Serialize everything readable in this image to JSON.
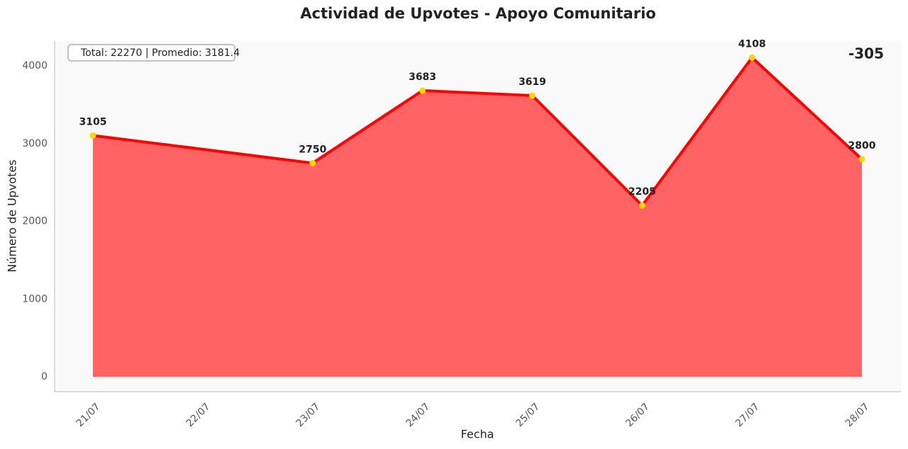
{
  "chart_data": {
    "type": "area",
    "title": "Actividad de Upvotes - Apoyo Comunitario",
    "xlabel": "Fecha",
    "ylabel": "Número de Upvotes",
    "x": [
      "21/07",
      "23/07",
      "24/07",
      "25/07",
      "26/07",
      "27/07",
      "28/07"
    ],
    "values": [
      3105,
      2750,
      3683,
      3619,
      2205,
      4108,
      2800
    ],
    "xticks": [
      "21/07",
      "22/07",
      "23/07",
      "24/07",
      "25/07",
      "26/07",
      "27/07",
      "28/07"
    ],
    "ylim": [
      -190,
      4320
    ],
    "yticks": [
      0,
      1000,
      2000,
      3000,
      4000
    ],
    "line_color": "#ff0000",
    "fill_color": "#ff6363",
    "marker_color": "#ffd700",
    "annotations": [
      "Total: 22270 | Promedio: 3181.4",
      "-305"
    ],
    "grid": false
  }
}
